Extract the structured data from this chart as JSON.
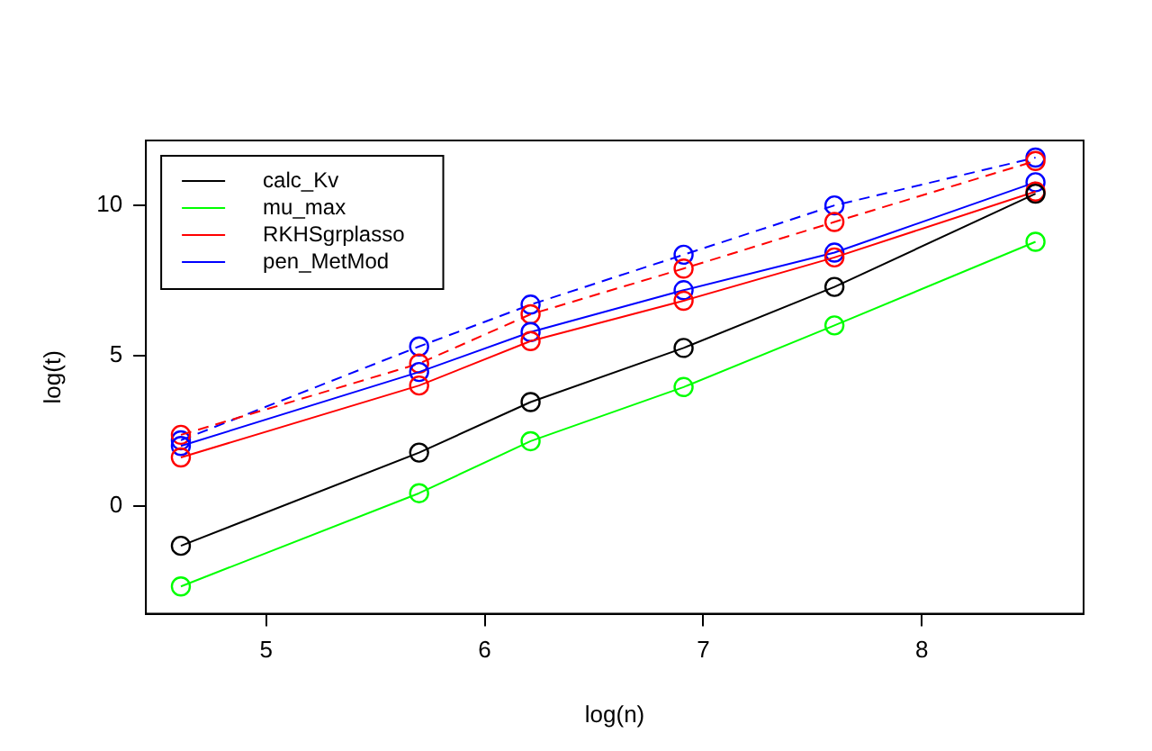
{
  "chart_data": {
    "type": "line",
    "xlabel": "log(n)",
    "ylabel": "log(t)",
    "x": [
      4.61,
      5.7,
      6.21,
      6.91,
      7.6,
      8.52
    ],
    "xlim": [
      4.45,
      8.74
    ],
    "ylim": [
      -3.58,
      12.16
    ],
    "xticks": [
      5,
      6,
      7,
      8
    ],
    "yticks": [
      0,
      5,
      10
    ],
    "grid": false,
    "legend": "top left",
    "marker": "circle",
    "series": [
      {
        "name": "calc_Kv",
        "color": "#000000",
        "values": [
          -1.32,
          1.78,
          3.46,
          5.26,
          7.29,
          10.39
        ]
      },
      {
        "name": "mu_max",
        "color": "#00ff00",
        "values": [
          -2.67,
          0.43,
          2.16,
          3.96,
          6.01,
          8.79
        ]
      },
      {
        "name": "RKHSgrplasso",
        "color": "#ff0000",
        "values": [
          1.62,
          4.01,
          5.49,
          6.83,
          8.27,
          10.46
        ]
      },
      {
        "name": "pen_MetMod",
        "color": "#0000ff",
        "values": [
          2.0,
          4.46,
          5.79,
          7.18,
          8.43,
          10.77
        ]
      },
      {
        "color": "#ff0000",
        "line_style": "dashed",
        "values": [
          2.37,
          4.74,
          6.38,
          7.9,
          9.45,
          11.48
        ]
      },
      {
        "color": "#0000ff",
        "line_style": "dashed",
        "values": [
          2.19,
          5.31,
          6.7,
          8.36,
          10.0,
          11.59
        ]
      }
    ]
  }
}
